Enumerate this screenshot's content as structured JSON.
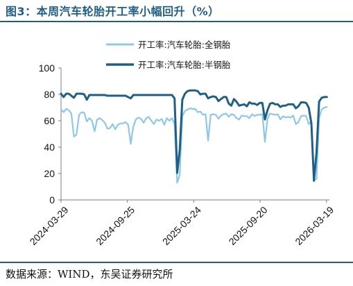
{
  "page": {
    "title": "图3：本周汽车轮胎开工率小幅回升（%）",
    "source": "数据来源：WIND，东吴证券研究所"
  },
  "chart_data": {
    "type": "line",
    "title": "",
    "xlabel": "",
    "ylabel": "",
    "ylim": [
      0,
      100
    ],
    "y_ticks": [
      0,
      20,
      40,
      60,
      80,
      100
    ],
    "x_ticks": [
      "2024-03-29",
      "2024-09-25",
      "2025-03-24",
      "2025-09-20",
      "2026-03-19"
    ],
    "xlim": [
      "2024-03-29",
      "2026-03-27"
    ],
    "grid": false,
    "legend_position": "top-center",
    "series": [
      {
        "name": "开工率:汽车轮胎:全钢胎",
        "color": "#8dc8e8",
        "points": [
          [
            "2024-03-29",
            68.5
          ],
          [
            "2024-04-05",
            66.5
          ],
          [
            "2024-04-12",
            69.0
          ],
          [
            "2024-04-19",
            68.0
          ],
          [
            "2024-04-26",
            65.5
          ],
          [
            "2024-05-03",
            48.0
          ],
          [
            "2024-05-10",
            49.5
          ],
          [
            "2024-05-17",
            64.5
          ],
          [
            "2024-05-24",
            66.5
          ],
          [
            "2024-05-31",
            66.0
          ],
          [
            "2024-06-07",
            59.5
          ],
          [
            "2024-06-14",
            62.0
          ],
          [
            "2024-06-21",
            60.0
          ],
          [
            "2024-06-28",
            52.0
          ],
          [
            "2024-07-05",
            61.0
          ],
          [
            "2024-07-12",
            62.0
          ],
          [
            "2024-07-19",
            60.5
          ],
          [
            "2024-07-26",
            58.5
          ],
          [
            "2024-08-02",
            54.0
          ],
          [
            "2024-08-09",
            54.5
          ],
          [
            "2024-08-16",
            57.5
          ],
          [
            "2024-08-23",
            53.5
          ],
          [
            "2024-08-30",
            57.0
          ],
          [
            "2024-09-06",
            58.0
          ],
          [
            "2024-09-13",
            58.0
          ],
          [
            "2024-09-20",
            59.0
          ],
          [
            "2024-09-27",
            57.0
          ],
          [
            "2024-10-04",
            42.5
          ],
          [
            "2024-10-11",
            55.5
          ],
          [
            "2024-10-18",
            61.0
          ],
          [
            "2024-10-25",
            62.5
          ],
          [
            "2024-11-01",
            61.5
          ],
          [
            "2024-11-08",
            58.5
          ],
          [
            "2024-11-15",
            62.0
          ],
          [
            "2024-11-22",
            63.0
          ],
          [
            "2024-11-29",
            60.0
          ],
          [
            "2024-12-06",
            57.5
          ],
          [
            "2024-12-13",
            61.0
          ],
          [
            "2024-12-20",
            60.0
          ],
          [
            "2024-12-27",
            61.5
          ],
          [
            "2025-01-03",
            57.0
          ],
          [
            "2025-01-10",
            62.0
          ],
          [
            "2025-01-17",
            60.0
          ],
          [
            "2025-01-24",
            62.0
          ],
          [
            "2025-01-31",
            57.5
          ],
          [
            "2025-02-07",
            13.0
          ],
          [
            "2025-02-14",
            19.0
          ],
          [
            "2025-02-21",
            63.5
          ],
          [
            "2025-02-28",
            67.5
          ],
          [
            "2025-03-07",
            68.5
          ],
          [
            "2025-03-14",
            69.5
          ],
          [
            "2025-03-21",
            69.0
          ],
          [
            "2025-03-28",
            69.0
          ],
          [
            "2025-04-04",
            66.5
          ],
          [
            "2025-04-11",
            67.0
          ],
          [
            "2025-04-18",
            64.5
          ],
          [
            "2025-04-25",
            65.0
          ],
          [
            "2025-05-02",
            45.0
          ],
          [
            "2025-05-09",
            64.5
          ],
          [
            "2025-05-16",
            65.0
          ],
          [
            "2025-05-23",
            64.5
          ],
          [
            "2025-05-30",
            61.5
          ],
          [
            "2025-06-06",
            64.0
          ],
          [
            "2025-06-13",
            65.0
          ],
          [
            "2025-06-20",
            65.5
          ],
          [
            "2025-06-27",
            63.0
          ],
          [
            "2025-07-04",
            65.0
          ],
          [
            "2025-07-11",
            64.5
          ],
          [
            "2025-07-18",
            62.0
          ],
          [
            "2025-07-25",
            61.0
          ],
          [
            "2025-08-01",
            64.0
          ],
          [
            "2025-08-08",
            63.5
          ],
          [
            "2025-08-15",
            63.5
          ],
          [
            "2025-08-22",
            62.0
          ],
          [
            "2025-08-29",
            65.0
          ],
          [
            "2025-09-05",
            63.5
          ],
          [
            "2025-09-12",
            64.5
          ],
          [
            "2025-09-19",
            64.5
          ],
          [
            "2025-09-26",
            65.0
          ],
          [
            "2025-10-03",
            44.0
          ],
          [
            "2025-10-10",
            61.5
          ],
          [
            "2025-10-17",
            65.5
          ],
          [
            "2025-10-24",
            65.0
          ],
          [
            "2025-10-31",
            64.5
          ],
          [
            "2025-11-07",
            65.0
          ],
          [
            "2025-11-14",
            61.0
          ],
          [
            "2025-11-21",
            63.5
          ],
          [
            "2025-11-28",
            62.5
          ],
          [
            "2025-12-05",
            63.0
          ],
          [
            "2025-12-12",
            62.5
          ],
          [
            "2025-12-19",
            64.0
          ],
          [
            "2025-12-26",
            57.5
          ],
          [
            "2026-01-02",
            59.0
          ],
          [
            "2026-01-09",
            63.5
          ],
          [
            "2026-01-16",
            64.0
          ],
          [
            "2026-01-23",
            63.5
          ],
          [
            "2026-01-30",
            57.5
          ],
          [
            "2026-02-06",
            59.5
          ],
          [
            "2026-02-13",
            15.0
          ],
          [
            "2026-02-20",
            16.0
          ],
          [
            "2026-02-27",
            62.0
          ],
          [
            "2026-03-06",
            68.5
          ],
          [
            "2026-03-13",
            70.0
          ],
          [
            "2026-03-20",
            70.5
          ]
        ]
      },
      {
        "name": "开工率:汽车轮胎:半钢胎",
        "color": "#1f5f85",
        "points": [
          [
            "2024-03-29",
            80.5
          ],
          [
            "2024-04-05",
            78.0
          ],
          [
            "2024-04-12",
            80.5
          ],
          [
            "2024-04-19",
            80.5
          ],
          [
            "2024-04-26",
            79.0
          ],
          [
            "2024-05-03",
            77.5
          ],
          [
            "2024-05-10",
            80.5
          ],
          [
            "2024-05-17",
            80.5
          ],
          [
            "2024-05-24",
            80.5
          ],
          [
            "2024-05-31",
            80.0
          ],
          [
            "2024-06-07",
            76.0
          ],
          [
            "2024-06-14",
            79.5
          ],
          [
            "2024-06-21",
            79.5
          ],
          [
            "2024-06-28",
            79.5
          ],
          [
            "2024-07-05",
            79.5
          ],
          [
            "2024-07-12",
            79.5
          ],
          [
            "2024-07-19",
            79.5
          ],
          [
            "2024-07-26",
            79.5
          ],
          [
            "2024-08-02",
            79.0
          ],
          [
            "2024-08-09",
            79.0
          ],
          [
            "2024-08-16",
            79.0
          ],
          [
            "2024-08-23",
            79.0
          ],
          [
            "2024-08-30",
            79.0
          ],
          [
            "2024-09-06",
            79.0
          ],
          [
            "2024-09-13",
            79.0
          ],
          [
            "2024-09-20",
            79.0
          ],
          [
            "2024-09-27",
            78.0
          ],
          [
            "2024-10-04",
            77.0
          ],
          [
            "2024-10-11",
            79.5
          ],
          [
            "2024-10-18",
            79.5
          ],
          [
            "2024-10-25",
            79.5
          ],
          [
            "2024-11-01",
            79.5
          ],
          [
            "2024-11-08",
            79.5
          ],
          [
            "2024-11-15",
            79.5
          ],
          [
            "2024-11-22",
            79.5
          ],
          [
            "2024-11-29",
            79.5
          ],
          [
            "2024-12-06",
            79.5
          ],
          [
            "2024-12-13",
            79.5
          ],
          [
            "2024-12-20",
            79.5
          ],
          [
            "2024-12-27",
            79.5
          ],
          [
            "2025-01-03",
            79.5
          ],
          [
            "2025-01-10",
            79.5
          ],
          [
            "2025-01-17",
            79.5
          ],
          [
            "2025-01-24",
            79.5
          ],
          [
            "2025-01-31",
            77.0
          ],
          [
            "2025-02-07",
            20.5
          ],
          [
            "2025-02-14",
            38.0
          ],
          [
            "2025-02-21",
            76.0
          ],
          [
            "2025-02-28",
            80.5
          ],
          [
            "2025-03-07",
            82.5
          ],
          [
            "2025-03-14",
            83.0
          ],
          [
            "2025-03-21",
            83.0
          ],
          [
            "2025-03-28",
            83.0
          ],
          [
            "2025-04-04",
            82.5
          ],
          [
            "2025-04-11",
            80.0
          ],
          [
            "2025-04-18",
            80.5
          ],
          [
            "2025-04-25",
            80.5
          ],
          [
            "2025-05-02",
            77.0
          ],
          [
            "2025-05-09",
            78.0
          ],
          [
            "2025-05-16",
            78.5
          ],
          [
            "2025-05-23",
            78.0
          ],
          [
            "2025-05-30",
            75.0
          ],
          [
            "2025-06-06",
            76.5
          ],
          [
            "2025-06-13",
            78.0
          ],
          [
            "2025-06-20",
            78.0
          ],
          [
            "2025-06-27",
            73.0
          ],
          [
            "2025-07-04",
            71.5
          ],
          [
            "2025-07-11",
            76.5
          ],
          [
            "2025-07-18",
            74.5
          ],
          [
            "2025-07-25",
            71.5
          ],
          [
            "2025-08-01",
            72.0
          ],
          [
            "2025-08-08",
            72.5
          ],
          [
            "2025-08-15",
            71.0
          ],
          [
            "2025-08-22",
            74.0
          ],
          [
            "2025-08-29",
            73.0
          ],
          [
            "2025-09-05",
            73.0
          ],
          [
            "2025-09-12",
            72.0
          ],
          [
            "2025-09-19",
            73.5
          ],
          [
            "2025-09-26",
            73.5
          ],
          [
            "2025-10-03",
            61.0
          ],
          [
            "2025-10-10",
            68.0
          ],
          [
            "2025-10-17",
            73.0
          ],
          [
            "2025-10-24",
            73.5
          ],
          [
            "2025-10-31",
            72.5
          ],
          [
            "2025-11-07",
            72.5
          ],
          [
            "2025-11-14",
            70.5
          ],
          [
            "2025-11-21",
            71.5
          ],
          [
            "2025-11-28",
            71.5
          ],
          [
            "2025-12-05",
            72.5
          ],
          [
            "2025-12-12",
            72.5
          ],
          [
            "2025-12-19",
            72.5
          ],
          [
            "2025-12-26",
            69.5
          ],
          [
            "2026-01-02",
            71.0
          ],
          [
            "2026-01-09",
            74.0
          ],
          [
            "2026-01-16",
            74.0
          ],
          [
            "2026-01-23",
            73.5
          ],
          [
            "2026-01-30",
            70.0
          ],
          [
            "2026-02-06",
            58.0
          ],
          [
            "2026-02-13",
            14.5
          ],
          [
            "2026-02-20",
            36.0
          ],
          [
            "2026-02-27",
            74.5
          ],
          [
            "2026-03-06",
            77.5
          ],
          [
            "2026-03-13",
            78.0
          ],
          [
            "2026-03-20",
            78.0
          ]
        ]
      }
    ]
  }
}
